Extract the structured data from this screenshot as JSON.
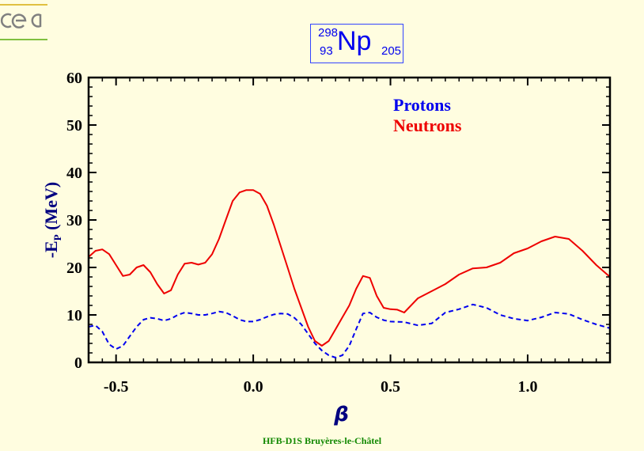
{
  "nuclide": {
    "mass": "298",
    "z": "93",
    "symbol": "Np",
    "n": "205"
  },
  "footer": "HFB-D1S Bruyères-le-Châtel",
  "colors": {
    "background": "#fffde0",
    "protons": "#0000ee",
    "neutrons": "#ee0000",
    "axis_label": "#000080",
    "footer": "#118800"
  },
  "chart_data": {
    "type": "line",
    "xlabel": "β",
    "ylabel": "-E",
    "ylabel_sub": "P",
    "ylabel_unit": " (MeV)",
    "xlim": [
      -0.6,
      1.3
    ],
    "ylim": [
      0,
      60
    ],
    "xticks": [
      -0.5,
      0.0,
      0.5,
      1.0
    ],
    "xtick_labels": [
      "-0.5",
      "0.0",
      "0.5",
      "1.0"
    ],
    "yticks": [
      0,
      10,
      20,
      30,
      40,
      50,
      60
    ],
    "ytick_labels": [
      "0",
      "10",
      "20",
      "30",
      "40",
      "50",
      "60"
    ],
    "legend": "top-right",
    "series": [
      {
        "name": "Protons",
        "style": "dashed",
        "color": "#0000ee",
        "x": [
          -0.6,
          -0.575,
          -0.55,
          -0.525,
          -0.5,
          -0.475,
          -0.45,
          -0.425,
          -0.4,
          -0.375,
          -0.35,
          -0.325,
          -0.3,
          -0.275,
          -0.25,
          -0.225,
          -0.2,
          -0.175,
          -0.15,
          -0.125,
          -0.1,
          -0.075,
          -0.05,
          -0.025,
          0.0,
          0.025,
          0.05,
          0.075,
          0.1,
          0.125,
          0.15,
          0.175,
          0.2,
          0.225,
          0.25,
          0.275,
          0.3,
          0.325,
          0.35,
          0.375,
          0.4,
          0.425,
          0.45,
          0.475,
          0.5,
          0.55,
          0.6,
          0.65,
          0.7,
          0.75,
          0.8,
          0.85,
          0.9,
          0.95,
          1.0,
          1.05,
          1.1,
          1.15,
          1.2,
          1.25,
          1.3
        ],
        "y": [
          7.5,
          7.8,
          6.5,
          3.8,
          2.8,
          3.5,
          5.5,
          7.5,
          9.0,
          9.4,
          9.2,
          8.8,
          9.2,
          10.0,
          10.5,
          10.3,
          10.0,
          10.0,
          10.3,
          10.7,
          10.5,
          9.8,
          9.0,
          8.6,
          8.6,
          9.0,
          9.6,
          10.1,
          10.3,
          10.2,
          9.4,
          8.0,
          6.0,
          4.0,
          2.5,
          1.5,
          1.0,
          1.5,
          3.5,
          7.0,
          10.3,
          10.5,
          9.5,
          8.9,
          8.6,
          8.5,
          7.8,
          8.2,
          10.5,
          11.2,
          12.2,
          11.5,
          10.0,
          9.2,
          8.8,
          9.5,
          10.5,
          10.2,
          9.0,
          8.0,
          7.2
        ]
      },
      {
        "name": "Neutrons",
        "style": "solid",
        "color": "#ee0000",
        "x": [
          -0.6,
          -0.575,
          -0.55,
          -0.525,
          -0.5,
          -0.475,
          -0.45,
          -0.425,
          -0.4,
          -0.375,
          -0.35,
          -0.325,
          -0.3,
          -0.275,
          -0.25,
          -0.225,
          -0.2,
          -0.175,
          -0.15,
          -0.125,
          -0.1,
          -0.075,
          -0.05,
          -0.025,
          0.0,
          0.025,
          0.05,
          0.075,
          0.1,
          0.125,
          0.15,
          0.175,
          0.2,
          0.225,
          0.25,
          0.275,
          0.3,
          0.325,
          0.35,
          0.375,
          0.4,
          0.425,
          0.45,
          0.475,
          0.5,
          0.525,
          0.55,
          0.6,
          0.65,
          0.7,
          0.75,
          0.8,
          0.85,
          0.9,
          0.95,
          1.0,
          1.05,
          1.1,
          1.15,
          1.2,
          1.25,
          1.3
        ],
        "y": [
          22.2,
          23.5,
          23.8,
          22.8,
          20.5,
          18.2,
          18.5,
          20.0,
          20.5,
          19.0,
          16.5,
          14.5,
          15.2,
          18.5,
          20.8,
          21.0,
          20.6,
          21.0,
          22.8,
          26.0,
          30.0,
          34.0,
          35.8,
          36.3,
          36.3,
          35.5,
          33.0,
          29.0,
          24.5,
          20.0,
          15.5,
          11.5,
          7.5,
          4.5,
          3.5,
          4.5,
          7.0,
          9.5,
          12.0,
          15.5,
          18.2,
          17.8,
          14.0,
          11.5,
          11.2,
          11.1,
          10.5,
          13.5,
          15.0,
          16.5,
          18.5,
          19.8,
          20.0,
          21.0,
          23.0,
          24.0,
          25.5,
          26.5,
          26.0,
          23.5,
          20.5,
          18.0
        ]
      }
    ]
  }
}
